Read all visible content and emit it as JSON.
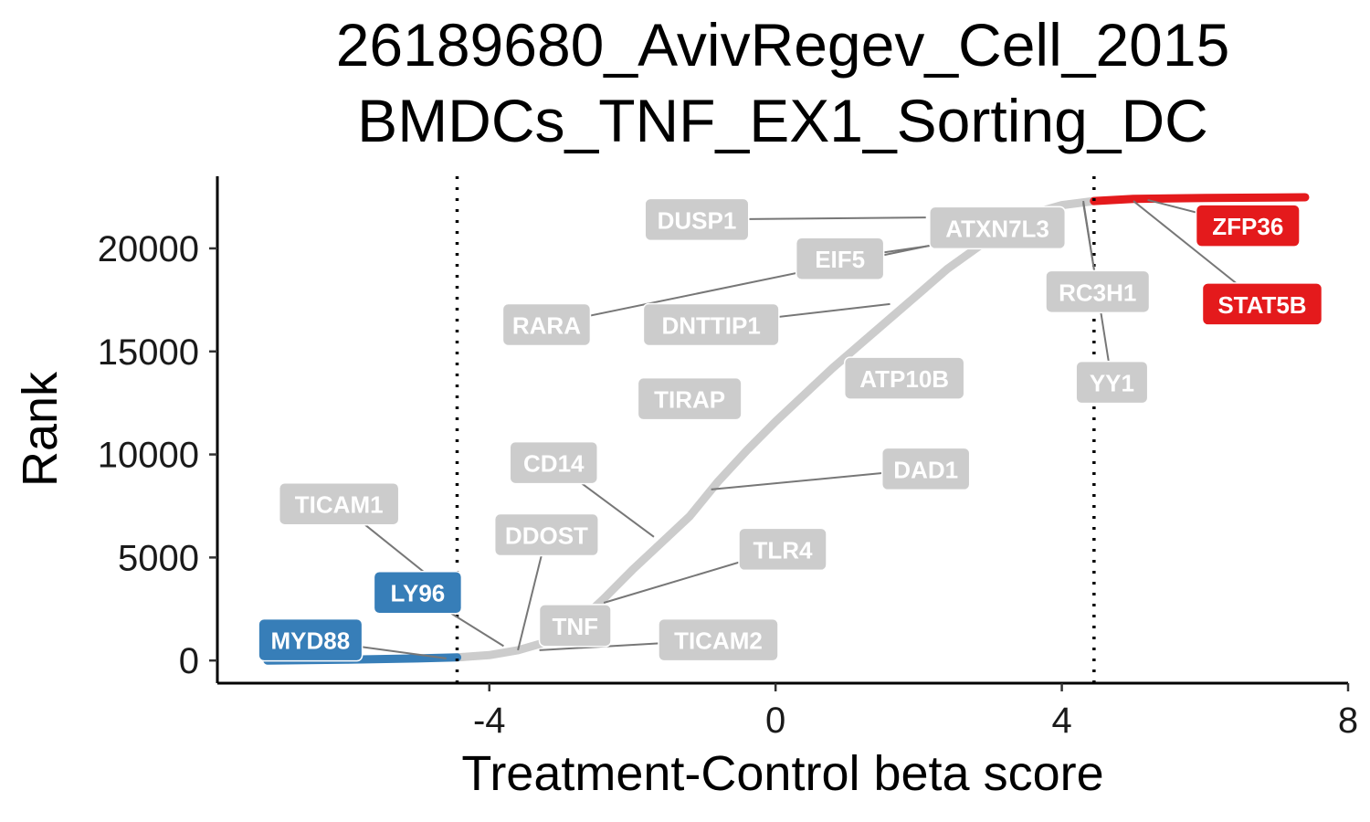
{
  "chart_data": {
    "type": "scatter",
    "title": "26189680_AvivRegev_Cell_2015",
    "subtitle": "BMDCs_TNF_EX1_Sorting_DC",
    "xlabel": "Treatment-Control beta score",
    "ylabel": "Rank",
    "xlim": [
      -7.8,
      8.0
    ],
    "ylim": [
      -1100,
      23500
    ],
    "x_ticks": [
      -4,
      0,
      4,
      8
    ],
    "x_tick_labels": [
      "-4",
      "0",
      "4",
      "8"
    ],
    "y_ticks": [
      0,
      5000,
      10000,
      15000,
      20000
    ],
    "y_tick_labels": [
      "0",
      "5000",
      "10000",
      "15000",
      "20000"
    ],
    "thresholds": [
      -4.45,
      4.45
    ],
    "grid": false,
    "legend": "none",
    "colors": {
      "negative": "#377EB8",
      "positive": "#E41A1C",
      "neutral": "#CCCCCC",
      "segment": "#777777"
    },
    "curve": [
      {
        "x": -7.1,
        "y": 0
      },
      {
        "x": -6.0,
        "y": 40
      },
      {
        "x": -5.0,
        "y": 100
      },
      {
        "x": -4.45,
        "y": 150
      },
      {
        "x": -4.0,
        "y": 260
      },
      {
        "x": -3.6,
        "y": 500
      },
      {
        "x": -3.2,
        "y": 900
      },
      {
        "x": -2.8,
        "y": 1700
      },
      {
        "x": -2.4,
        "y": 3000
      },
      {
        "x": -2.0,
        "y": 4400
      },
      {
        "x": -1.6,
        "y": 5700
      },
      {
        "x": -1.2,
        "y": 7000
      },
      {
        "x": -0.8,
        "y": 8700
      },
      {
        "x": -0.4,
        "y": 10200
      },
      {
        "x": 0.0,
        "y": 11600
      },
      {
        "x": 0.4,
        "y": 12900
      },
      {
        "x": 0.8,
        "y": 14200
      },
      {
        "x": 1.2,
        "y": 15400
      },
      {
        "x": 1.6,
        "y": 16600
      },
      {
        "x": 2.0,
        "y": 17800
      },
      {
        "x": 2.4,
        "y": 19000
      },
      {
        "x": 2.8,
        "y": 20000
      },
      {
        "x": 3.2,
        "y": 21000
      },
      {
        "x": 3.6,
        "y": 21700
      },
      {
        "x": 4.0,
        "y": 22100
      },
      {
        "x": 4.45,
        "y": 22300
      },
      {
        "x": 5.0,
        "y": 22400
      },
      {
        "x": 6.0,
        "y": 22450
      },
      {
        "x": 7.4,
        "y": 22480
      }
    ],
    "labels": [
      {
        "gene": "DUSP1",
        "group": "neutral",
        "point": [
          2.1,
          21500
        ],
        "label": [
          -1.1,
          21400
        ]
      },
      {
        "gene": "ATXN7L3",
        "group": "neutral",
        "point": [
          2.9,
          21200
        ],
        "label": [
          3.1,
          21000
        ]
      },
      {
        "gene": "EIF5",
        "group": "neutral",
        "point": [
          2.9,
          20500
        ],
        "label": [
          0.9,
          19500
        ]
      },
      {
        "gene": "RARA",
        "group": "neutral",
        "point": [
          2.8,
          20600
        ],
        "label": [
          -3.2,
          16300
        ]
      },
      {
        "gene": "DNTTIP1",
        "group": "neutral",
        "point": [
          1.6,
          17300
        ],
        "label": [
          -0.9,
          16300
        ]
      },
      {
        "gene": "RC3H1",
        "group": "neutral",
        "point": [
          4.3,
          22200
        ],
        "label": [
          4.5,
          17900
        ]
      },
      {
        "gene": "YY1",
        "group": "neutral",
        "point": [
          4.3,
          22300
        ],
        "label": [
          4.7,
          13500
        ]
      },
      {
        "gene": "ATP10B",
        "group": "neutral",
        "point": [
          1.7,
          14700
        ],
        "label": [
          1.8,
          13700
        ]
      },
      {
        "gene": "TIRAP",
        "group": "neutral",
        "point": [
          -1.2,
          12500
        ],
        "label": [
          -1.2,
          12700
        ]
      },
      {
        "gene": "CD14",
        "group": "neutral",
        "point": [
          -1.7,
          6000
        ],
        "label": [
          -3.1,
          9600
        ]
      },
      {
        "gene": "DAD1",
        "group": "neutral",
        "point": [
          -0.9,
          8300
        ],
        "label": [
          2.1,
          9300
        ]
      },
      {
        "gene": "TICAM1",
        "group": "neutral",
        "point": [
          -4.7,
          3700
        ],
        "label": [
          -6.1,
          7600
        ]
      },
      {
        "gene": "DDOST",
        "group": "neutral",
        "point": [
          -3.6,
          500
        ],
        "label": [
          -3.2,
          6100
        ]
      },
      {
        "gene": "TLR4",
        "group": "neutral",
        "point": [
          -2.4,
          2800
        ],
        "label": [
          0.1,
          5400
        ]
      },
      {
        "gene": "LY96",
        "group": "negative",
        "point": [
          -3.8,
          700
        ],
        "label": [
          -5.0,
          3300
        ]
      },
      {
        "gene": "TNF",
        "group": "neutral",
        "point": [
          -2.4,
          1700
        ],
        "label": [
          -2.8,
          1700
        ]
      },
      {
        "gene": "TICAM2",
        "group": "neutral",
        "point": [
          -3.3,
          500
        ],
        "label": [
          -0.8,
          1000
        ]
      },
      {
        "gene": "MYD88",
        "group": "negative",
        "point": [
          -4.6,
          100
        ],
        "label": [
          -6.5,
          1000
        ]
      },
      {
        "gene": "ZFP36",
        "group": "positive",
        "point": [
          5.2,
          22350
        ],
        "label": [
          6.6,
          21100
        ]
      },
      {
        "gene": "STAT5B",
        "group": "positive",
        "point": [
          5.0,
          22300
        ],
        "label": [
          6.8,
          17300
        ]
      }
    ]
  }
}
